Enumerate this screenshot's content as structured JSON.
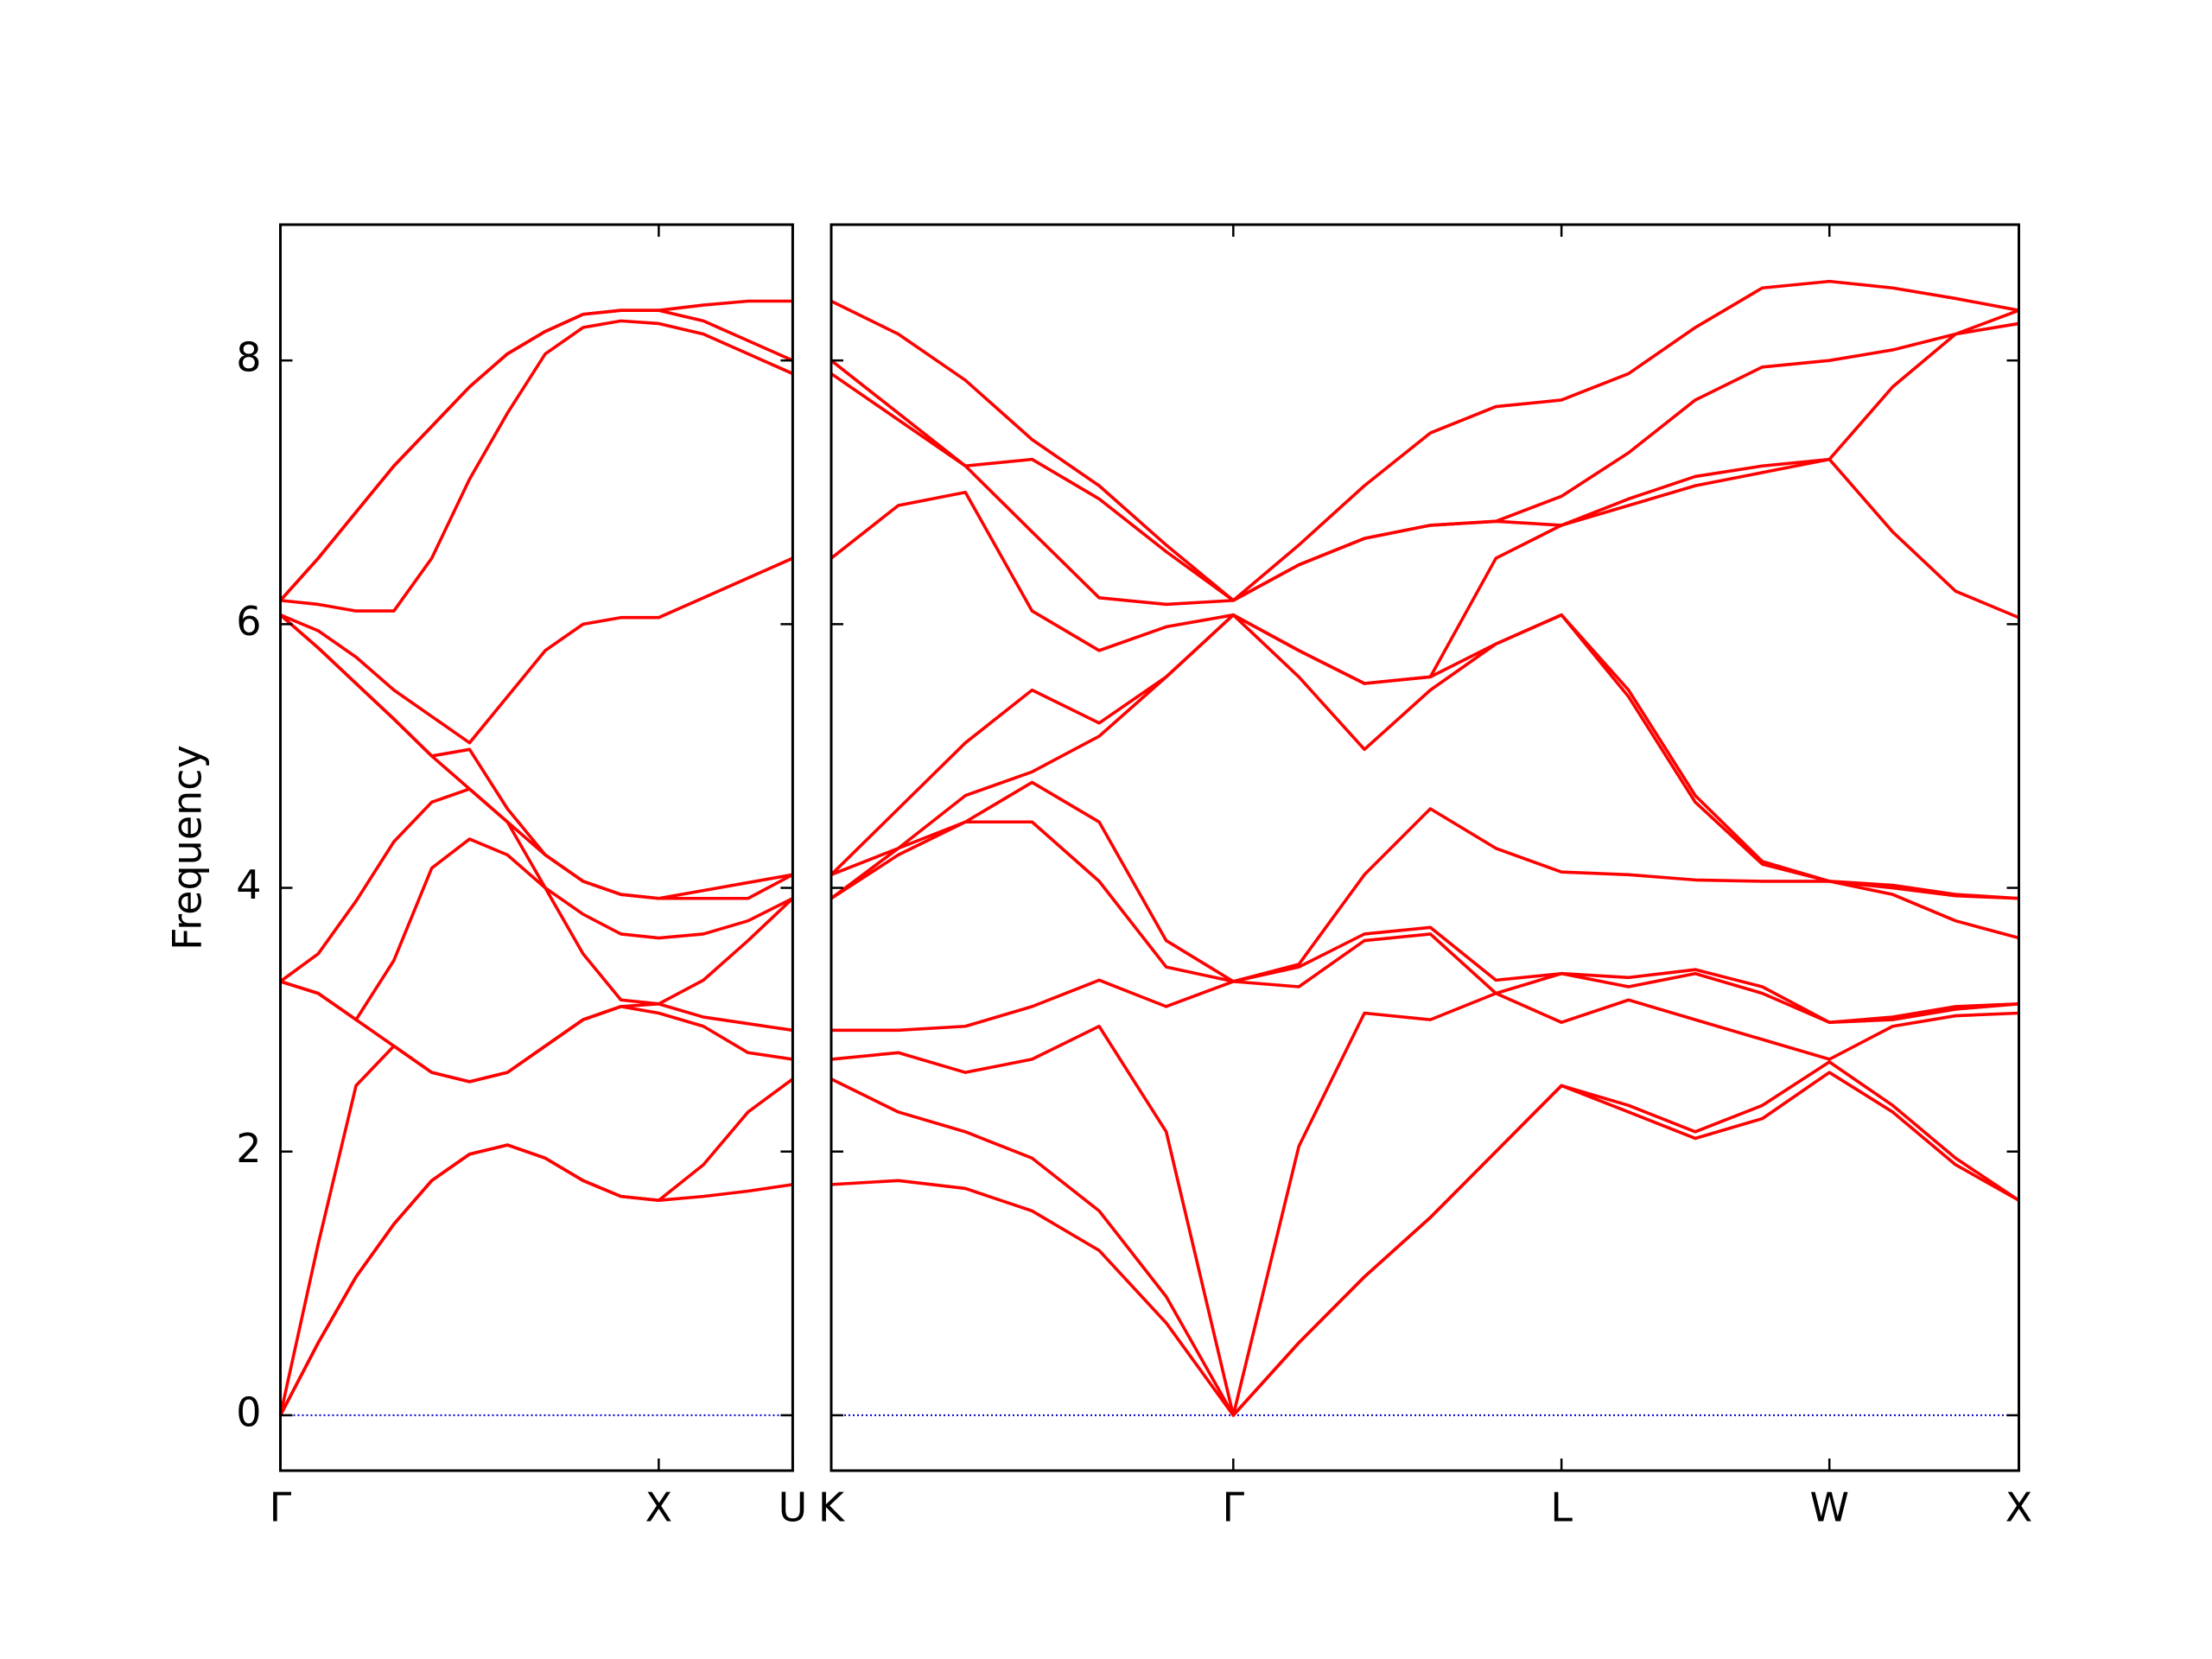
{
  "chart_data": [
    {
      "type": "line",
      "y_label": "Frequency",
      "x": [
        0,
        0.1,
        0.2,
        0.3,
        0.4,
        0.5,
        0.6,
        0.7,
        0.8,
        0.9,
        1,
        1.118,
        1.236,
        1.354
      ],
      "xlim": [
        0,
        1.354
      ],
      "xticks": [
        {
          "value": 0,
          "label": "Γ"
        },
        {
          "value": 1,
          "label": "X"
        },
        {
          "value": 1.354,
          "label": "U"
        }
      ],
      "ylim": [
        -0.42,
        9.03
      ],
      "yticks": [
        0,
        2,
        4,
        6,
        8
      ],
      "ytick_labels": true,
      "hline": {
        "value": 0,
        "color": "#0000cc"
      },
      "series": [
        {
          "color": "#ff0000",
          "values": [
            0,
            0.55,
            1.05,
            1.45,
            1.78,
            1.98,
            2.05,
            1.95,
            1.78,
            1.66,
            1.63,
            1.66,
            1.7,
            1.75
          ]
        },
        {
          "color": "#ff0000",
          "values": [
            0,
            0.55,
            1.05,
            1.45,
            1.78,
            1.98,
            2.05,
            1.95,
            1.78,
            1.66,
            1.63,
            1.9,
            2.3,
            2.55
          ]
        },
        {
          "color": "#ff0000",
          "values": [
            0,
            1.3,
            2.5,
            2.8,
            2.6,
            2.53,
            2.6,
            2.8,
            3.0,
            3.1,
            3.05,
            2.95,
            2.75,
            2.7
          ]
        },
        {
          "color": "#ff0000",
          "values": [
            3.29,
            3.2,
            3.0,
            2.8,
            2.6,
            2.53,
            2.6,
            2.8,
            3.0,
            3.1,
            3.12,
            3.02,
            2.97,
            2.92
          ]
        },
        {
          "color": "#ff0000",
          "values": [
            3.29,
            3.2,
            3.0,
            3.45,
            4.15,
            4.37,
            4.25,
            4.0,
            3.5,
            3.15,
            3.12,
            3.3,
            3.6,
            3.92
          ]
        },
        {
          "color": "#ff0000",
          "values": [
            3.29,
            3.5,
            3.9,
            4.35,
            4.65,
            4.75,
            4.5,
            4.0,
            3.8,
            3.65,
            3.62,
            3.65,
            3.75,
            3.92
          ]
        },
        {
          "color": "#ff0000",
          "values": [
            6.07,
            5.82,
            5.55,
            5.28,
            5.0,
            4.75,
            4.5,
            4.25,
            4.05,
            3.95,
            3.92,
            3.92,
            3.92,
            4.1
          ]
        },
        {
          "color": "#ff0000",
          "values": [
            6.07,
            5.82,
            5.55,
            5.28,
            5.0,
            5.05,
            4.6,
            4.25,
            4.05,
            3.95,
            3.92,
            3.98,
            4.04,
            4.1
          ]
        },
        {
          "color": "#ff0000",
          "values": [
            6.07,
            5.95,
            5.75,
            5.5,
            5.3,
            5.1,
            5.45,
            5.8,
            6.0,
            6.05,
            6.05,
            6.2,
            6.35,
            6.5
          ]
        },
        {
          "color": "#ff0000",
          "values": [
            6.18,
            6.15,
            6.1,
            6.1,
            6.5,
            7.1,
            7.6,
            8.05,
            8.25,
            8.3,
            8.28,
            8.2,
            8.05,
            7.9
          ]
        },
        {
          "color": "#ff0000",
          "values": [
            6.18,
            6.5,
            6.85,
            7.2,
            7.5,
            7.8,
            8.05,
            8.22,
            8.35,
            8.38,
            8.38,
            8.3,
            8.15,
            8.0
          ]
        },
        {
          "color": "#ff0000",
          "values": [
            6.18,
            6.5,
            6.85,
            7.2,
            7.5,
            7.8,
            8.05,
            8.22,
            8.35,
            8.38,
            8.38,
            8.42,
            8.45,
            8.45
          ]
        }
      ]
    },
    {
      "type": "line",
      "x": [
        1.354,
        1.531,
        1.708,
        1.884,
        2.061,
        2.238,
        2.415,
        2.588,
        2.761,
        2.935,
        3.108,
        3.281,
        3.458,
        3.634,
        3.811,
        3.988,
        4.155,
        4.321,
        4.488
      ],
      "xlim": [
        1.354,
        4.488
      ],
      "xticks": [
        {
          "value": 1.354,
          "label": "K"
        },
        {
          "value": 2.415,
          "label": "Γ"
        },
        {
          "value": 3.281,
          "label": "L"
        },
        {
          "value": 3.988,
          "label": "W"
        },
        {
          "value": 4.488,
          "label": "X"
        }
      ],
      "ylim": [
        -0.42,
        9.03
      ],
      "yticks": [
        0,
        2,
        4,
        6,
        8
      ],
      "ytick_labels": false,
      "hline": {
        "value": 0,
        "color": "#0000cc"
      },
      "series": [
        {
          "color": "#ff0000",
          "values": [
            1.75,
            1.78,
            1.72,
            1.55,
            1.25,
            0.7,
            0,
            0.55,
            1.05,
            1.5,
            2.0,
            2.5,
            2.3,
            2.1,
            2.25,
            2.6,
            2.3,
            1.9,
            1.63
          ]
        },
        {
          "color": "#ff0000",
          "values": [
            2.55,
            2.3,
            2.15,
            1.95,
            1.55,
            0.9,
            0,
            0.55,
            1.05,
            1.5,
            2.0,
            2.5,
            2.35,
            2.15,
            2.35,
            2.68,
            2.35,
            1.95,
            1.63
          ]
        },
        {
          "color": "#ff0000",
          "values": [
            2.7,
            2.75,
            2.6,
            2.7,
            2.95,
            2.15,
            0,
            2.04,
            3.05,
            3.0,
            3.2,
            2.98,
            3.15,
            3.0,
            2.85,
            2.7,
            2.95,
            3.03,
            3.05
          ]
        },
        {
          "color": "#ff0000",
          "values": [
            2.92,
            2.92,
            2.95,
            3.1,
            3.3,
            3.1,
            3.29,
            3.25,
            3.6,
            3.65,
            3.2,
            3.35,
            3.25,
            3.35,
            3.2,
            2.98,
            3.0,
            3.08,
            3.12
          ]
        },
        {
          "color": "#ff0000",
          "values": [
            3.92,
            4.25,
            4.5,
            4.5,
            4.05,
            3.4,
            3.29,
            3.4,
            3.65,
            3.7,
            3.3,
            3.35,
            3.32,
            3.38,
            3.25,
            2.98,
            3.02,
            3.1,
            3.12
          ]
        },
        {
          "color": "#ff0000",
          "values": [
            3.92,
            4.3,
            4.5,
            4.8,
            4.5,
            3.6,
            3.29,
            3.42,
            4.1,
            4.6,
            4.3,
            4.12,
            4.1,
            4.06,
            4.05,
            4.05,
            3.95,
            3.75,
            3.62
          ]
        },
        {
          "color": "#ff0000",
          "values": [
            4.1,
            4.3,
            4.7,
            4.88,
            5.15,
            5.6,
            6.07,
            5.6,
            5.05,
            5.5,
            5.85,
            6.07,
            5.45,
            4.65,
            4.18,
            4.05,
            4.0,
            3.94,
            3.92
          ]
        },
        {
          "color": "#ff0000",
          "values": [
            4.1,
            4.6,
            5.1,
            5.5,
            5.25,
            5.6,
            6.07,
            5.8,
            5.55,
            5.6,
            5.85,
            6.07,
            5.5,
            4.7,
            4.2,
            4.05,
            4.02,
            3.95,
            3.92
          ]
        },
        {
          "color": "#ff0000",
          "values": [
            6.5,
            6.9,
            7.0,
            6.1,
            5.8,
            5.98,
            6.07,
            5.8,
            5.55,
            5.6,
            6.5,
            6.75,
            6.9,
            7.05,
            7.15,
            7.25,
            6.7,
            6.25,
            6.05
          ]
        },
        {
          "color": "#ff0000",
          "values": [
            7.9,
            7.55,
            7.2,
            6.7,
            6.2,
            6.15,
            6.18,
            6.45,
            6.65,
            6.75,
            6.78,
            6.75,
            6.95,
            7.12,
            7.2,
            7.25,
            7.8,
            8.2,
            8.28
          ]
        },
        {
          "color": "#ff0000",
          "values": [
            8.0,
            7.6,
            7.2,
            7.25,
            6.95,
            6.55,
            6.18,
            6.45,
            6.65,
            6.75,
            6.78,
            6.97,
            7.3,
            7.7,
            7.95,
            8.0,
            8.08,
            8.2,
            8.38
          ]
        },
        {
          "color": "#ff0000",
          "values": [
            8.45,
            8.2,
            7.85,
            7.4,
            7.05,
            6.6,
            6.18,
            6.6,
            7.05,
            7.45,
            7.65,
            7.7,
            7.9,
            8.25,
            8.55,
            8.6,
            8.55,
            8.47,
            8.38
          ]
        }
      ]
    }
  ]
}
